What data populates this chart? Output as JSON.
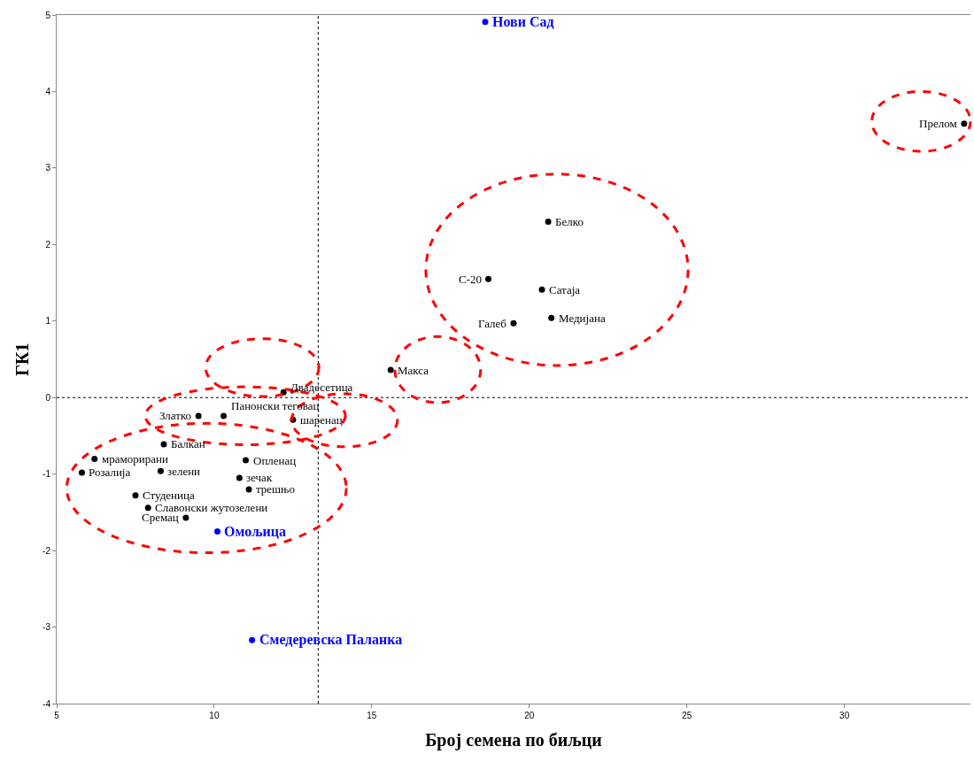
{
  "chart_data": {
    "type": "scatter",
    "xlabel": "Број семена по биљци",
    "ylabel": "ГК1",
    "xlim": [
      5,
      34
    ],
    "xticks": [
      5,
      10,
      15,
      20,
      25,
      30
    ],
    "ylim": [
      -4,
      5
    ],
    "yticks": [
      -4,
      -3,
      -2,
      -1,
      0,
      1,
      2,
      3,
      4,
      5
    ],
    "grid": false,
    "marker": "circle",
    "ref_lines": [
      {
        "axis": "x",
        "value": 13.3,
        "color": "#000000",
        "line_style": "dotted"
      },
      {
        "axis": "y",
        "value": 0,
        "color": "#000000",
        "line_style": "dotted"
      }
    ],
    "series": [
      {
        "color": "#000000",
        "x": [
          33.8,
          20.6,
          18.7,
          20.4,
          19.5,
          20.7,
          15.6,
          12.2,
          9.5,
          10.3,
          12.5,
          8.4,
          6.2,
          5.8,
          8.3,
          11.0,
          10.8,
          11.1,
          7.5,
          7.9,
          9.1
        ],
        "values": [
          3.58,
          2.3,
          1.55,
          1.41,
          0.97,
          1.04,
          0.36,
          0.07,
          -0.24,
          -0.24,
          -0.29,
          -0.61,
          -0.8,
          -0.98,
          -0.96,
          -0.82,
          -1.05,
          -1.2,
          -1.28,
          -1.44,
          -1.57
        ]
      },
      {
        "color": "#0000ff",
        "x": [
          18.6,
          10.1,
          11.2
        ],
        "values": [
          4.91,
          -1.75,
          -3.17
        ]
      }
    ],
    "annotations": [
      {
        "text": "Прелом",
        "x": 33.8,
        "y": 3.58
      },
      {
        "text": "Белко",
        "x": 20.6,
        "y": 2.3
      },
      {
        "text": "С-20",
        "x": 18.7,
        "y": 1.55
      },
      {
        "text": "Сатаја",
        "x": 20.4,
        "y": 1.41
      },
      {
        "text": "Галеб",
        "x": 19.5,
        "y": 0.97
      },
      {
        "text": "Медијана",
        "x": 20.7,
        "y": 1.04
      },
      {
        "text": "Макса",
        "x": 15.6,
        "y": 0.36
      },
      {
        "text": "Двадесетица",
        "x": 12.2,
        "y": 0.07
      },
      {
        "text": "Златко",
        "x": 9.5,
        "y": -0.24
      },
      {
        "text": "Панонски теговац",
        "x": 10.3,
        "y": -0.24
      },
      {
        "text": "шаренац",
        "x": 12.5,
        "y": -0.29
      },
      {
        "text": "Балкан",
        "x": 8.4,
        "y": -0.61
      },
      {
        "text": "мраморирани",
        "x": 6.2,
        "y": -0.8
      },
      {
        "text": "Розалија",
        "x": 5.8,
        "y": -0.98
      },
      {
        "text": "зелени",
        "x": 8.3,
        "y": -0.96
      },
      {
        "text": "Опленац",
        "x": 11.0,
        "y": -0.82
      },
      {
        "text": "зечак",
        "x": 10.8,
        "y": -1.05
      },
      {
        "text": "трешњо",
        "x": 11.1,
        "y": -1.2
      },
      {
        "text": "Студеница",
        "x": 7.5,
        "y": -1.28
      },
      {
        "text": "Славонски жутозелени",
        "x": 7.9,
        "y": -1.44
      },
      {
        "text": "Сремац",
        "x": 9.1,
        "y": -1.57
      },
      {
        "text": "Нови Сад",
        "x": 18.6,
        "y": 4.91
      },
      {
        "text": "Омољица",
        "x": 10.1,
        "y": -1.75
      },
      {
        "text": "Смедеревска Паланка",
        "x": 11.2,
        "y": -3.17
      }
    ]
  }
}
